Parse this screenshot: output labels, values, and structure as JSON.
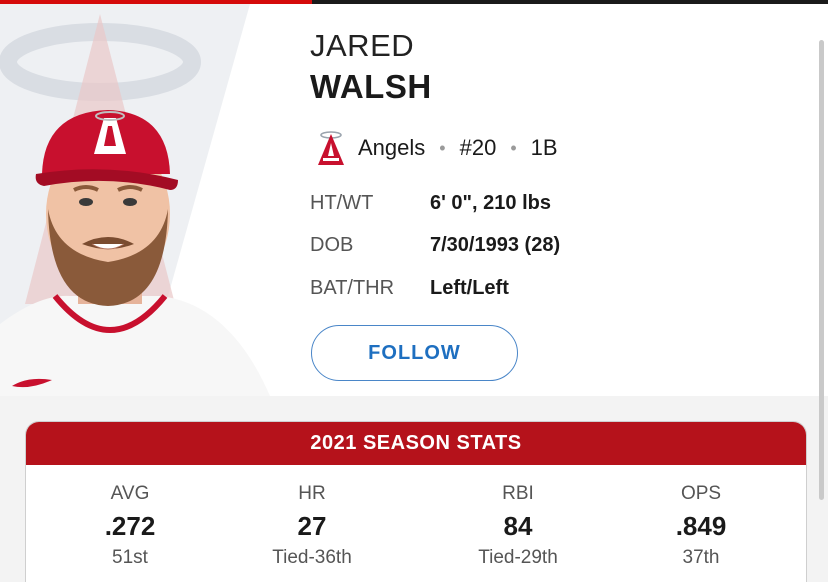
{
  "player": {
    "first_name": "JARED",
    "last_name": "WALSH",
    "team": "Angels",
    "number": "#20",
    "position": "1B",
    "separator": "•"
  },
  "bio": [
    {
      "label": "HT/WT",
      "value": "6' 0\", 210 lbs"
    },
    {
      "label": "DOB",
      "value": "7/30/1993 (28)"
    },
    {
      "label": "BAT/THR",
      "value": "Left/Left"
    }
  ],
  "follow_button": {
    "label": "FOLLOW"
  },
  "stats": {
    "title": "2021 SEASON STATS",
    "items": [
      {
        "label": "AVG",
        "value": ".272",
        "rank": "51st"
      },
      {
        "label": "HR",
        "value": "27",
        "rank": "Tied-36th"
      },
      {
        "label": "RBI",
        "value": "84",
        "rank": "Tied-29th"
      },
      {
        "label": "OPS",
        "value": ".849",
        "rank": "37th"
      }
    ]
  },
  "icons": {
    "team_logo": "angels-logo-icon",
    "headshot": "player-headshot"
  },
  "colors": {
    "brand_red": "#b5121b",
    "follow_blue": "#1e6fc0",
    "top_accent": "#d50a0a"
  }
}
